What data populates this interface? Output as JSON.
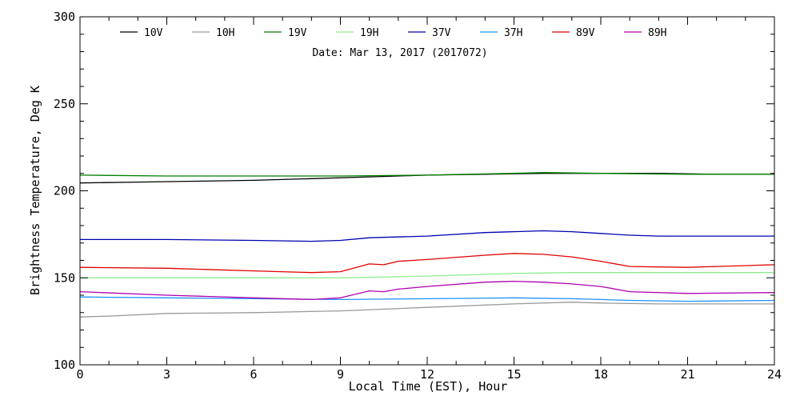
{
  "chart_data": {
    "type": "line",
    "title": "",
    "annotation": "Date: Mar 13, 2017 (2017072)",
    "xlabel": "Local Time (EST), Hour",
    "ylabel": "Brightness Temperature, Deg K",
    "xlim": [
      0,
      24
    ],
    "ylim": [
      100,
      300
    ],
    "xticks": [
      0,
      3,
      6,
      9,
      12,
      15,
      18,
      21,
      24
    ],
    "yticks": [
      100,
      150,
      200,
      250,
      300
    ],
    "grid": false,
    "legend_position": "top",
    "series": [
      {
        "name": "10V",
        "color": "#000000",
        "x": [
          0,
          2,
          4,
          6,
          8,
          10,
          12,
          14,
          16,
          18,
          20,
          22,
          24
        ],
        "y": [
          204.5,
          205,
          205.5,
          206,
          207,
          208,
          209,
          209.5,
          210,
          210,
          210,
          209.5,
          209.5
        ]
      },
      {
        "name": "10H",
        "color": "#999999",
        "x": [
          0,
          1,
          3,
          6,
          9,
          12,
          15,
          17,
          18,
          20,
          24
        ],
        "y": [
          127.5,
          128,
          129.5,
          130,
          131,
          133,
          135,
          136,
          135.5,
          135,
          135
        ]
      },
      {
        "name": "19V",
        "color": "#008000",
        "x": [
          0,
          3,
          6,
          9,
          12,
          15,
          16,
          18,
          21,
          24
        ],
        "y": [
          209,
          208.5,
          208.5,
          208.5,
          209,
          210,
          210.5,
          210,
          209.5,
          209.5
        ]
      },
      {
        "name": "19H",
        "color": "#90ee90",
        "x": [
          0,
          3,
          6,
          9,
          12,
          15,
          17,
          19,
          21,
          24
        ],
        "y": [
          150,
          150,
          150,
          150,
          151,
          152.5,
          153,
          153,
          153,
          153
        ]
      },
      {
        "name": "37V",
        "color": "#0000b0",
        "x": [
          0,
          3,
          6,
          8,
          9,
          10,
          12,
          14,
          15,
          16,
          17,
          18,
          19,
          20,
          22,
          24
        ],
        "y": [
          172,
          172,
          171.5,
          171,
          171.5,
          173,
          174,
          176,
          176.5,
          177,
          176.5,
          175.5,
          174.5,
          174,
          174,
          174
        ]
      },
      {
        "name": "37H",
        "color": "#1e90ff",
        "x": [
          0,
          3,
          6,
          9,
          12,
          15,
          17,
          18,
          19,
          21,
          24
        ],
        "y": [
          139,
          138.5,
          138,
          137.5,
          138,
          138.5,
          138,
          137.5,
          137,
          136.5,
          137
        ]
      },
      {
        "name": "89V",
        "color": "#e00000",
        "x": [
          0,
          3,
          6,
          8,
          9,
          10,
          10.5,
          11,
          12,
          14,
          15,
          16,
          17,
          18,
          19,
          21,
          22,
          24
        ],
        "y": [
          156,
          155.5,
          154,
          153,
          153.5,
          158,
          157.5,
          159.5,
          160.5,
          163,
          164,
          163.5,
          162,
          159.5,
          156.5,
          156,
          156.5,
          157.5
        ]
      },
      {
        "name": "89H",
        "color": "#b000b0",
        "x": [
          0,
          3,
          6,
          8,
          9,
          10,
          10.5,
          11,
          12,
          14,
          15,
          16,
          17,
          18,
          19,
          21,
          24
        ],
        "y": [
          142,
          140,
          138.5,
          137.5,
          138.5,
          142.5,
          142,
          143.5,
          145,
          147.5,
          148,
          147.5,
          146.5,
          145,
          142,
          141,
          141.5
        ]
      }
    ]
  }
}
